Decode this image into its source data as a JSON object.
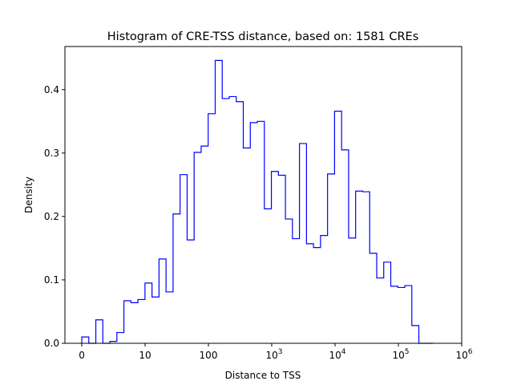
{
  "chart_data": {
    "type": "histogram-step",
    "title": "Histogram of CRE-TSS distance, based on: 1581 CREs",
    "xlabel": "Distance to TSS",
    "ylabel": "Density",
    "x_scale": "log10(distance+1)",
    "xlim": [
      -0.266,
      6.0
    ],
    "ylim": [
      0,
      0.468
    ],
    "bin_start": 0,
    "bin_width": 0.1109,
    "color": "#0000ff",
    "values": [
      0.01,
      0.0,
      0.037,
      0.0,
      0.003,
      0.017,
      0.067,
      0.064,
      0.069,
      0.095,
      0.073,
      0.133,
      0.081,
      0.204,
      0.266,
      0.163,
      0.301,
      0.311,
      0.362,
      0.446,
      0.386,
      0.389,
      0.381,
      0.308,
      0.348,
      0.35,
      0.212,
      0.271,
      0.265,
      0.196,
      0.165,
      0.315,
      0.157,
      0.151,
      0.17,
      0.267,
      0.366,
      0.305,
      0.166,
      0.24,
      0.239,
      0.142,
      0.103,
      0.128,
      0.09,
      0.088,
      0.091,
      0.028,
      0.0,
      0.0
    ],
    "x_ticks": [
      {
        "pos": 0,
        "label": "0",
        "exp": ""
      },
      {
        "pos": 1,
        "label": "10",
        "exp": ""
      },
      {
        "pos": 2,
        "label": "100",
        "exp": ""
      },
      {
        "pos": 3,
        "label": "10",
        "exp": "3"
      },
      {
        "pos": 4,
        "label": "10",
        "exp": "4"
      },
      {
        "pos": 5,
        "label": "10",
        "exp": "5"
      },
      {
        "pos": 6,
        "label": "10",
        "exp": "6"
      }
    ],
    "y_ticks": [
      {
        "value": 0.0,
        "label": "0.0"
      },
      {
        "value": 0.1,
        "label": "0.1"
      },
      {
        "value": 0.2,
        "label": "0.2"
      },
      {
        "value": 0.3,
        "label": "0.3"
      },
      {
        "value": 0.4,
        "label": "0.4"
      }
    ]
  }
}
